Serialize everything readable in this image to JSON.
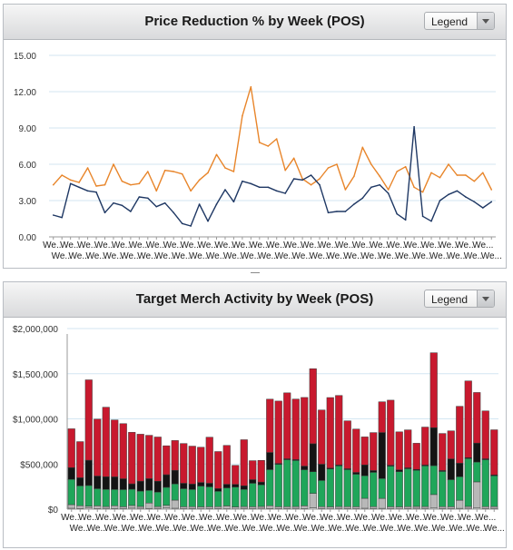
{
  "panels": [
    {
      "title": "Price Reduction % by Week (POS)",
      "legend_label": "Legend"
    },
    {
      "title": "Target Merch Activity by Week (POS)",
      "legend_label": "Legend"
    }
  ],
  "chart_data": [
    {
      "type": "line",
      "title": "Price Reduction % by Week (POS)",
      "xlabel": "",
      "ylabel": "",
      "ylim": [
        0,
        15
      ],
      "yticks": [
        "0.00",
        "3.00",
        "6.00",
        "9.00",
        "12.00",
        "15.00"
      ],
      "x_tick_label": "We...",
      "grid": true,
      "colors": {
        "orange": "#e8852a",
        "navy": "#1f3864"
      },
      "series": [
        {
          "values": [
            4.3,
            5.1,
            4.7,
            4.5,
            5.7,
            4.2,
            4.3,
            6.0,
            4.6,
            4.3,
            4.4,
            5.4,
            3.8,
            5.5,
            5.4,
            5.2,
            3.8,
            4.7,
            5.3,
            6.8,
            5.7,
            5.4,
            10.0,
            12.4,
            7.8,
            7.5,
            8.1,
            5.5,
            6.5,
            4.8,
            4.3,
            4.8,
            5.7,
            6.0,
            3.9,
            5.0,
            7.4,
            6.0,
            5.0,
            3.9,
            5.4,
            5.8,
            4.1,
            3.7,
            5.3,
            4.9,
            6.0,
            5.1,
            5.1,
            4.6,
            5.3,
            3.9
          ]
        },
        {
          "values": [
            1.8,
            1.6,
            4.4,
            4.1,
            3.8,
            3.7,
            2.0,
            2.8,
            2.6,
            2.1,
            3.3,
            3.2,
            2.5,
            2.8,
            2.0,
            1.1,
            0.9,
            2.7,
            1.3,
            2.7,
            3.9,
            2.9,
            4.6,
            4.4,
            4.1,
            4.1,
            3.8,
            3.6,
            4.8,
            4.7,
            5.1,
            4.3,
            2.0,
            2.1,
            2.1,
            2.7,
            3.2,
            4.1,
            4.3,
            3.6,
            1.9,
            1.4,
            9.1,
            1.7,
            1.3,
            3.0,
            3.5,
            3.8,
            3.3,
            2.9,
            2.4,
            2.9
          ]
        }
      ]
    },
    {
      "type": "bar",
      "title": "Target Merch Activity by Week (POS)",
      "xlabel": "",
      "ylabel": "",
      "ylim": [
        0,
        2000000
      ],
      "yticks": [
        "$0",
        "$500,000",
        "$1,000,000",
        "$1,500,000",
        "$2,000,000"
      ],
      "x_tick_label": "We...",
      "stacked": true,
      "grid": true,
      "colors": {
        "white": "#f2f2f2",
        "gray": "#b8b8b8",
        "green": "#1fa65a",
        "black": "#141414",
        "red": "#c8192e"
      },
      "series": [
        {
          "values": [
            10000,
            8000,
            12000,
            7000,
            9000,
            8000,
            7000,
            11000,
            10000,
            8000,
            9000,
            12000,
            10000,
            7000,
            8000,
            6000,
            7000,
            8000,
            6000,
            5000,
            9000,
            7000,
            10000,
            8000,
            7000,
            8000,
            9000,
            7000,
            15000,
            8000,
            6000,
            9000,
            8000,
            7000,
            10000,
            8000,
            9000,
            7000,
            6000,
            8000,
            10000,
            9000,
            12000,
            8000,
            7000,
            9000,
            10000,
            12000,
            8000,
            9000
          ]
        },
        {
          "values": [
            40000,
            30000,
            20000,
            30000,
            20000,
            30000,
            20000,
            30000,
            20000,
            60000,
            20000,
            30000,
            90000,
            20000,
            20000,
            20000,
            20000,
            20000,
            30000,
            20000,
            20000,
            20000,
            20000,
            30000,
            20000,
            20000,
            20000,
            30000,
            160000,
            20000,
            20000,
            20000,
            20000,
            20000,
            110000,
            20000,
            110000,
            20000,
            20000,
            20000,
            20000,
            20000,
            150000,
            20000,
            20000,
            90000,
            20000,
            290000,
            20000,
            20000
          ]
        },
        {
          "values": [
            280000,
            220000,
            230000,
            190000,
            190000,
            180000,
            190000,
            180000,
            170000,
            140000,
            160000,
            200000,
            180000,
            200000,
            190000,
            230000,
            220000,
            170000,
            200000,
            220000,
            190000,
            260000,
            240000,
            400000,
            470000,
            520000,
            510000,
            400000,
            240000,
            290000,
            420000,
            450000,
            410000,
            360000,
            250000,
            380000,
            220000,
            450000,
            390000,
            420000,
            400000,
            450000,
            320000,
            390000,
            300000,
            260000,
            530000,
            220000,
            520000,
            340000
          ]
        },
        {
          "values": [
            130000,
            90000,
            280000,
            140000,
            140000,
            140000,
            120000,
            60000,
            110000,
            130000,
            120000,
            140000,
            150000,
            60000,
            60000,
            40000,
            40000,
            30000,
            40000,
            30000,
            40000,
            40000,
            30000,
            190000,
            10000,
            10000,
            10000,
            40000,
            310000,
            180000,
            10000,
            10000,
            10000,
            20000,
            120000,
            20000,
            510000,
            10000,
            20000,
            10000,
            10000,
            10000,
            420000,
            10000,
            230000,
            150000,
            10000,
            210000,
            10000,
            10000
          ]
        },
        {
          "values": [
            430000,
            400000,
            890000,
            630000,
            770000,
            630000,
            610000,
            570000,
            520000,
            480000,
            490000,
            320000,
            330000,
            440000,
            420000,
            390000,
            510000,
            410000,
            430000,
            210000,
            510000,
            210000,
            240000,
            590000,
            690000,
            730000,
            670000,
            760000,
            830000,
            600000,
            780000,
            770000,
            530000,
            480000,
            310000,
            420000,
            340000,
            720000,
            420000,
            420000,
            290000,
            420000,
            830000,
            410000,
            310000,
            630000,
            850000,
            560000,
            530000,
            500000
          ]
        }
      ]
    }
  ]
}
